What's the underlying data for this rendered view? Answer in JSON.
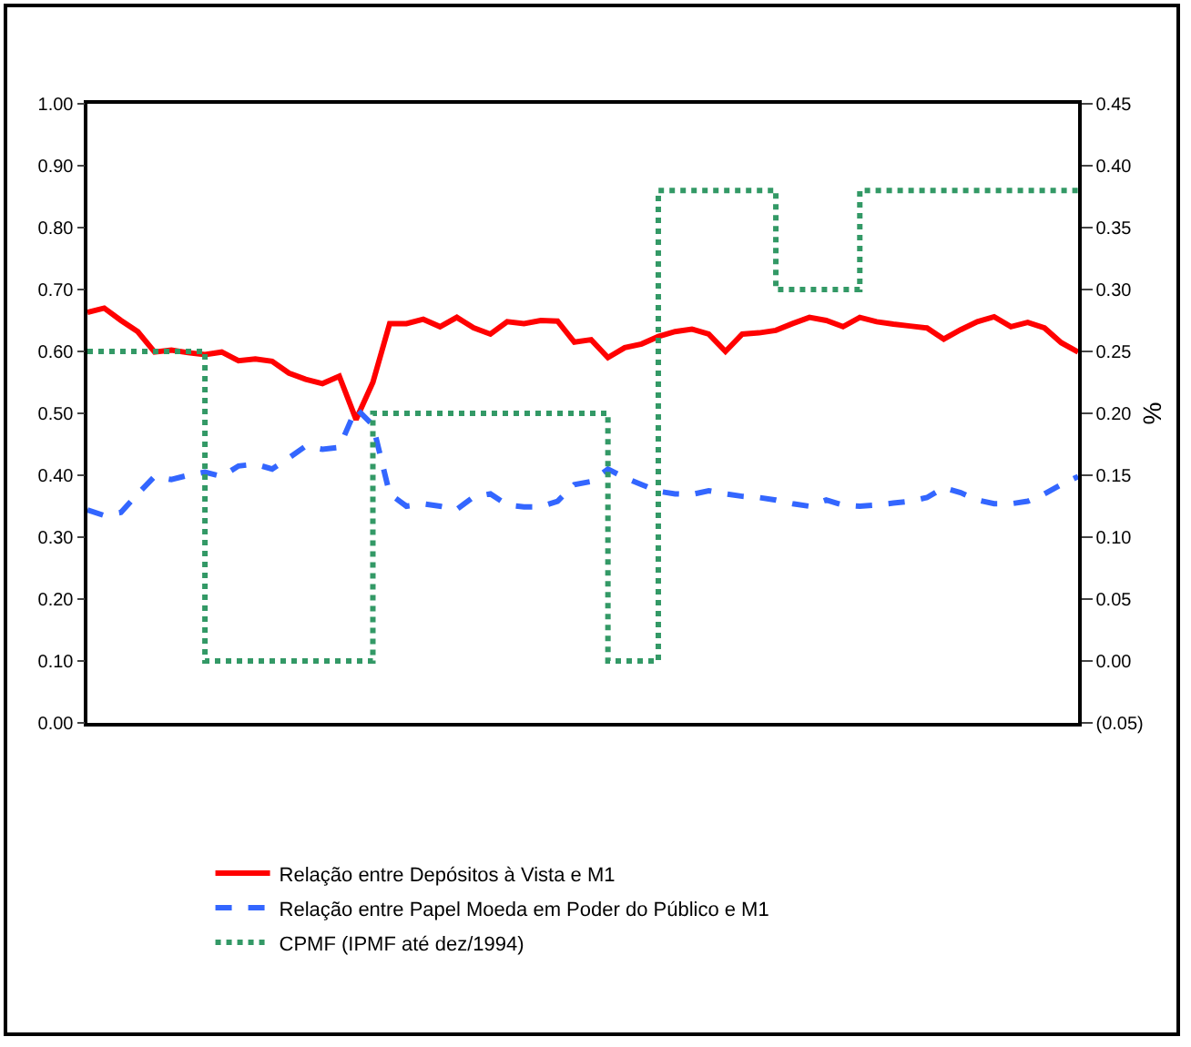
{
  "chart_data": {
    "type": "line",
    "categories": [
      null,
      null,
      null,
      null,
      null,
      null,
      null,
      null,
      null,
      null,
      null,
      null,
      null,
      null,
      null,
      null,
      null,
      null,
      null,
      null,
      null,
      null,
      null,
      null,
      null,
      null,
      null,
      null,
      null,
      null,
      null,
      null,
      null,
      null,
      null,
      null,
      null,
      null,
      null,
      null,
      null,
      null,
      null,
      null,
      null,
      null,
      null,
      null,
      null,
      null,
      null,
      null,
      null,
      null,
      null,
      null,
      null,
      null,
      null,
      null
    ],
    "y2label": "%",
    "ylim": [
      0,
      1
    ],
    "yticks": [
      {
        "value": 0,
        "label": "0.00"
      },
      {
        "value": 0.1,
        "label": "0.10"
      },
      {
        "value": 0.2,
        "label": "0.20"
      },
      {
        "value": 0.3,
        "label": "0.30"
      },
      {
        "value": 0.4,
        "label": "0.40"
      },
      {
        "value": 0.5,
        "label": "0.50"
      },
      {
        "value": 0.6,
        "label": "0.60"
      },
      {
        "value": 0.7,
        "label": "0.70"
      },
      {
        "value": 0.8,
        "label": "0.80"
      },
      {
        "value": 0.9,
        "label": "0.90"
      },
      {
        "value": 1,
        "label": "1.00"
      }
    ],
    "y2lim": [
      -0.05,
      0.45
    ],
    "y2ticks": [
      {
        "value": -0.05,
        "label": "(0.05)"
      },
      {
        "value": 0,
        "label": "0.00"
      },
      {
        "value": 0.05,
        "label": "0.05"
      },
      {
        "value": 0.1,
        "label": "0.10"
      },
      {
        "value": 0.15,
        "label": "0.15"
      },
      {
        "value": 0.2,
        "label": "0.20"
      },
      {
        "value": 0.25,
        "label": "0.25"
      },
      {
        "value": 0.3,
        "label": "0.30"
      },
      {
        "value": 0.35,
        "label": "0.35"
      },
      {
        "value": 0.4,
        "label": "0.40"
      },
      {
        "value": 0.45,
        "label": "0.45"
      }
    ],
    "grid": false,
    "legend": "bottom",
    "marker": "none",
    "series": [
      {
        "name": "Relação entre Depósitos à Vista e M1",
        "color": "#ff0000",
        "line_style": "solid",
        "values": [
          0.663,
          0.67,
          0.65,
          0.632,
          0.599,
          0.602,
          0.598,
          0.595,
          0.599,
          0.585,
          0.588,
          0.584,
          0.565,
          0.555,
          0.548,
          0.56,
          0.49,
          0.55,
          0.645,
          0.645,
          0.652,
          0.64,
          0.655,
          0.638,
          0.628,
          0.648,
          0.645,
          0.65,
          0.649,
          0.615,
          0.619,
          0.59,
          0.606,
          0.612,
          0.624,
          0.632,
          0.636,
          0.628,
          0.6,
          0.628,
          0.63,
          0.634,
          0.645,
          0.655,
          0.65,
          0.64,
          0.655,
          0.648,
          0.644,
          0.641,
          0.638,
          0.62,
          0.635,
          0.648,
          0.656,
          0.64,
          0.647,
          0.638,
          0.614,
          0.599
        ]
      },
      {
        "name": "Relação entre Papel Moeda em Poder do Público e M1",
        "color": "#3366ff",
        "line_style": "dashed",
        "values": [
          0.344,
          0.335,
          0.34,
          0.37,
          0.398,
          0.393,
          0.4,
          0.405,
          0.398,
          0.415,
          0.418,
          0.41,
          0.428,
          0.447,
          0.442,
          0.445,
          0.508,
          0.481,
          0.37,
          0.35,
          0.354,
          0.35,
          0.345,
          0.365,
          0.37,
          0.352,
          0.349,
          0.349,
          0.358,
          0.385,
          0.39,
          0.41,
          0.396,
          0.385,
          0.374,
          0.37,
          0.369,
          0.375,
          0.37,
          0.366,
          0.364,
          0.36,
          0.354,
          0.35,
          0.36,
          0.352,
          0.35,
          0.352,
          0.355,
          0.358,
          0.364,
          0.38,
          0.372,
          0.36,
          0.354,
          0.354,
          0.358,
          0.37,
          0.385,
          0.398
        ]
      },
      {
        "name": "CPMF (IPMF até dez/1994)",
        "color": "#339966",
        "type": "step",
        "axis": "y2",
        "line_style": "dotted",
        "values": [
          0.25,
          0.25,
          0.25,
          0.25,
          0.25,
          0.25,
          0.25,
          0,
          0,
          0,
          0,
          0,
          0,
          0,
          0,
          0,
          0,
          0.2,
          0.2,
          0.2,
          0.2,
          0.2,
          0.2,
          0.2,
          0.2,
          0.2,
          0.2,
          0.2,
          0.2,
          0.2,
          0.2,
          0,
          0,
          0,
          0.38,
          0.38,
          0.38,
          0.38,
          0.38,
          0.38,
          0.38,
          0.3,
          0.3,
          0.3,
          0.3,
          0.3,
          0.38,
          0.38,
          0.38,
          0.38,
          0.38,
          0.38,
          0.38,
          0.38,
          0.38,
          0.38,
          0.38,
          0.38,
          0.38,
          0.38
        ]
      }
    ]
  }
}
